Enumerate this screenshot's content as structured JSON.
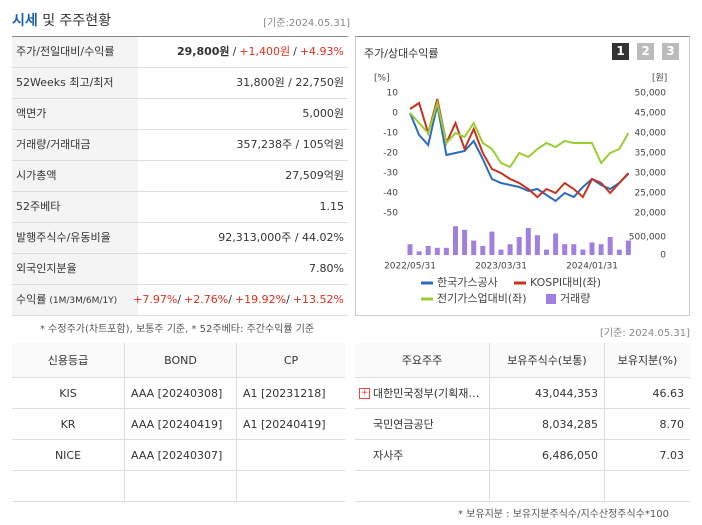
{
  "header": {
    "title_highlight": "시세",
    "title_rest": "및 주주현황",
    "date": "[기준:2024.05.31]"
  },
  "summary": {
    "sep": "/",
    "rows": [
      {
        "label": "주가/전일대비/수익률",
        "parts": [
          "29,800원",
          "+1,400원",
          "+4.93%"
        ]
      },
      {
        "label": "52Weeks 최고/최저",
        "value": "31,800원 / 22,750원"
      },
      {
        "label": "액면가",
        "value": "5,000원"
      },
      {
        "label": "거래량/거래대금",
        "value": "357,238주 / 105억원"
      },
      {
        "label": "시가총액",
        "value": "27,509억원"
      },
      {
        "label": "52주베타",
        "value": "1.15"
      },
      {
        "label": "발행주식수/유동비율",
        "value": "92,313,000주 / 44.02%"
      },
      {
        "label": "외국인지분율",
        "value": "7.80%"
      },
      {
        "label": "수익률",
        "sublabel": "(1M/3M/6M/1Y)",
        "parts": [
          "+7.97%",
          "+2.76%",
          "+19.92%",
          "+13.52%"
        ]
      }
    ]
  },
  "summary_note": "* 수정주가(차트포함), 보통주 기준, * 52주베타: 주간수익률 기준",
  "chart_panel": {
    "title": "주가/상대수익률",
    "tabs": [
      "1",
      "2",
      "3"
    ]
  },
  "chart_data": {
    "type": "line",
    "ylabel": "[%]",
    "y2label": "[원]",
    "categories": [
      "2022/05/31",
      null,
      null,
      null,
      null,
      null,
      null,
      null,
      null,
      null,
      "2023/03/31",
      null,
      null,
      null,
      null,
      null,
      null,
      null,
      null,
      null,
      "2024/01/31",
      null,
      null,
      null,
      null
    ],
    "ylim": [
      -50,
      10
    ],
    "yticks": [
      10,
      0,
      -10,
      -20,
      -30,
      -40,
      -50
    ],
    "y2lim": [
      20000,
      50000
    ],
    "y2ticks": [
      {
        "value": 50000,
        "label": "50,000"
      },
      {
        "value": 45000,
        "label": "45,000"
      },
      {
        "value": 40000,
        "label": "40,000"
      },
      {
        "value": 35000,
        "label": "35,000"
      },
      {
        "value": 30000,
        "label": "30,000"
      },
      {
        "value": 25000,
        "label": "25,000"
      },
      {
        "value": 20000,
        "label": "20,000"
      }
    ],
    "y3lim": [
      0,
      1000000
    ],
    "y3ticks": [
      {
        "value": 500000,
        "label": "500,000"
      },
      0
    ],
    "series": [
      {
        "name": "한국가스공사",
        "color": "#2a6ebb",
        "axis": "y2",
        "values": [
          45000,
          39500,
          37000,
          47000,
          34500,
          35000,
          35500,
          38000,
          33500,
          28500,
          27500,
          27000,
          26500,
          25500,
          26000,
          24500,
          23000,
          25000,
          24000,
          26500,
          28500,
          27000,
          26000,
          27500,
          29800
        ]
      },
      {
        "name": "KOSPI대비(좌)",
        "color": "#c8321e",
        "values": [
          2,
          5,
          -10,
          7,
          -15,
          -5,
          -18,
          -8,
          -20,
          -28,
          -30,
          -33,
          -35,
          -38,
          -42,
          -38,
          -40,
          -35,
          -38,
          -42,
          -33,
          -35,
          -40,
          -35,
          -30
        ]
      },
      {
        "name": "전기가스업대비(좌)",
        "color": "#9acd32",
        "values": [
          0,
          -5,
          -10,
          5,
          -15,
          -10,
          -12,
          -5,
          -15,
          -18,
          -25,
          -27,
          -20,
          -22,
          -18,
          -15,
          -17,
          -14,
          -15,
          -15,
          -15,
          -25,
          -20,
          -18,
          -10
        ]
      },
      {
        "name": "거래량",
        "color": "#a07fe0",
        "type": "bar",
        "axis": "y3",
        "values": [
          300000,
          100000,
          250000,
          200000,
          200000,
          800000,
          700000,
          400000,
          250000,
          650000,
          150000,
          300000,
          500000,
          750000,
          550000,
          150000,
          600000,
          300000,
          300000,
          150000,
          350000,
          300000,
          500000,
          150000,
          400000
        ]
      }
    ]
  },
  "credit": {
    "headers": [
      "신용등급",
      "BOND",
      "CP"
    ],
    "rows": [
      [
        "KIS",
        "AAA [20240308]",
        "A1 [20231218]"
      ],
      [
        "KR",
        "AAA [20240419]",
        "A1 [20240419]"
      ],
      [
        "NICE",
        "AAA [20240307]",
        null
      ]
    ]
  },
  "holders": {
    "date": "[기준: 2024.05.31]",
    "headers": [
      "주요주주",
      "보유주식수(보통)",
      "보유지분(%)"
    ],
    "rows": [
      [
        "대한민국정부(기획재…",
        "43,044,353",
        "46.63"
      ],
      [
        "국민연금공단",
        "8,034,285",
        "8.70"
      ],
      [
        "자사주",
        "6,486,050",
        "7.03"
      ]
    ],
    "note": "* 보유지분 : 보유지분주식수/지수산정주식수*100"
  }
}
